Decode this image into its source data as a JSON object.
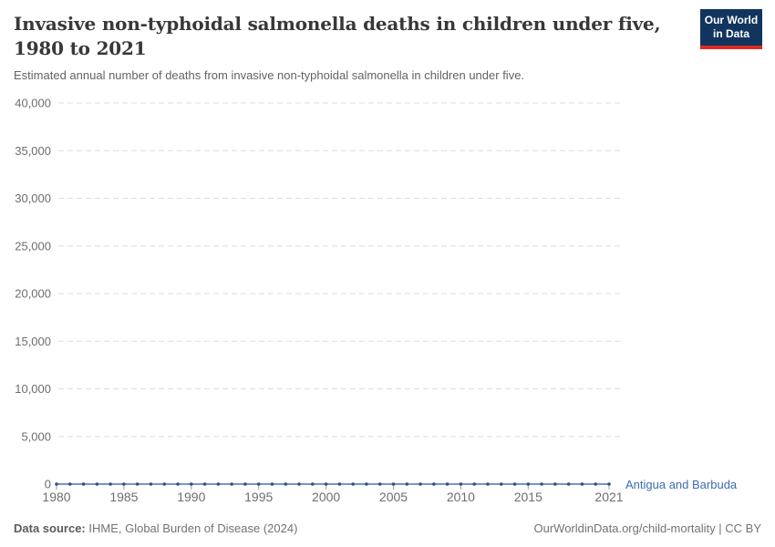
{
  "header": {
    "title": "Invasive non-typhoidal salmonella deaths in children under five, 1980 to 2021",
    "subtitle": "Estimated annual number of deaths from invasive non-typhoidal salmonella in children under five."
  },
  "logo": {
    "line1": "Our World",
    "line2": "in Data",
    "bg_color": "#12355f",
    "accent_color": "#dc2b20"
  },
  "chart_data": {
    "type": "line",
    "title": "Invasive non-typhoidal salmonella deaths in children under five, 1980 to 2021",
    "xlabel": "",
    "ylabel": "",
    "x": [
      1980,
      1981,
      1982,
      1983,
      1984,
      1985,
      1986,
      1987,
      1988,
      1989,
      1990,
      1991,
      1992,
      1993,
      1994,
      1995,
      1996,
      1997,
      1998,
      1999,
      2000,
      2001,
      2002,
      2003,
      2004,
      2005,
      2006,
      2007,
      2008,
      2009,
      2010,
      2011,
      2012,
      2013,
      2014,
      2015,
      2016,
      2017,
      2018,
      2019,
      2020,
      2021
    ],
    "series": [
      {
        "name": "Antigua and Barbuda",
        "color": "#4e74ab",
        "marker_color": "#2e5183",
        "values": [
          0,
          0,
          0,
          0,
          0,
          0,
          0,
          0,
          0,
          0,
          0,
          0,
          0,
          0,
          0,
          0,
          0,
          0,
          0,
          0,
          0,
          0,
          0,
          0,
          0,
          0,
          0,
          0,
          0,
          0,
          0,
          0,
          0,
          0,
          0,
          0,
          0,
          0,
          0,
          0,
          0,
          0
        ]
      }
    ],
    "ylim": [
      0,
      40000
    ],
    "yticks": [
      0,
      5000,
      10000,
      15000,
      20000,
      25000,
      30000,
      35000,
      40000
    ],
    "ytick_labels": [
      "0",
      "5,000",
      "10,000",
      "15,000",
      "20,000",
      "25,000",
      "30,000",
      "35,000",
      "40,000"
    ],
    "xticks": [
      1980,
      1985,
      1990,
      1995,
      2000,
      2005,
      2010,
      2015,
      2021
    ],
    "xtick_labels": [
      "1980",
      "1985",
      "1990",
      "1995",
      "2000",
      "2005",
      "2010",
      "2015",
      "2021"
    ],
    "grid": "horizontal-dashed",
    "gridline_color": "#dedede",
    "axis_text_color": "#6e6e6e",
    "legend_position": "end-of-line"
  },
  "footer": {
    "data_source_label": "Data source:",
    "data_source_value": " IHME, Global Burden of Disease (2024)",
    "credit": "OurWorldinData.org/child-mortality | CC BY"
  }
}
